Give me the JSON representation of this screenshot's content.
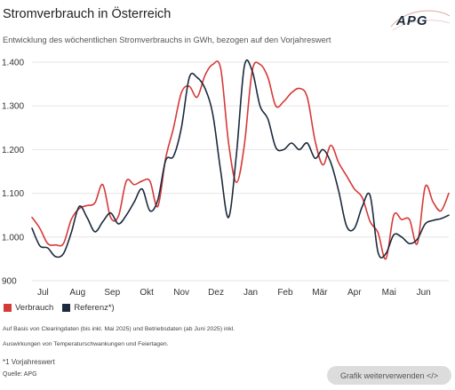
{
  "title": "Stromverbrauch in Österreich",
  "subtitle": "Entwicklung des wöchentlichen Stromverbrauchs in GWh, bezogen auf den Vorjahreswert",
  "logo_text": "APG",
  "legend": {
    "verbrauch": "Verbrauch",
    "referenz": "Referenz*)"
  },
  "notes": {
    "line1": "Auf Basis von Clearingdaten (bis inkl. Mai 2025) und Betriebsdaten (ab Juni 2025) inkl.",
    "line2": "Auswirkungen von Temperaturschwankungen und Feiertagen.",
    "footnote": "*1 Vorjahreswert",
    "source": "Quelle: APG"
  },
  "cta_label": "Grafik weiterverwenden </>",
  "colors": {
    "verbrauch": "#d63a37",
    "referenz": "#1c2a3d"
  },
  "chart_data": {
    "type": "line",
    "title": "",
    "xlabel": "",
    "ylabel": "",
    "ylim": [
      900,
      1400
    ],
    "yticks": [
      {
        "value": 900,
        "label": "900"
      },
      {
        "value": 1000,
        "label": "1.000"
      },
      {
        "value": 1100,
        "label": "1.100"
      },
      {
        "value": 1200,
        "label": "1.200"
      },
      {
        "value": 1300,
        "label": "1.300"
      },
      {
        "value": 1400,
        "label": "1.400"
      }
    ],
    "months": [
      {
        "label": "Jul",
        "week": 1.4
      },
      {
        "label": "Aug",
        "week": 5.8
      },
      {
        "label": "Sep",
        "week": 10.2
      },
      {
        "label": "Okt",
        "week": 14.6
      },
      {
        "label": "Nov",
        "week": 19.0
      },
      {
        "label": "Dez",
        "week": 23.4
      },
      {
        "label": "Jan",
        "week": 27.8
      },
      {
        "label": "Feb",
        "week": 32.2
      },
      {
        "label": "Mär",
        "week": 36.6
      },
      {
        "label": "Apr",
        "week": 41.0
      },
      {
        "label": "Mai",
        "week": 45.4
      },
      {
        "label": "Jun",
        "week": 49.8
      }
    ],
    "grid": true,
    "legend_position": "bottom-left",
    "series": [
      {
        "name": "Verbrauch",
        "values": [
          1045,
          1020,
          985,
          982,
          985,
          1040,
          1065,
          1072,
          1078,
          1120,
          1045,
          1048,
          1128,
          1120,
          1128,
          1128,
          1070,
          1180,
          1250,
          1330,
          1345,
          1320,
          1370,
          1395,
          1385,
          1215,
          1125,
          1210,
          1380,
          1395,
          1365,
          1300,
          1310,
          1330,
          1340,
          1320,
          1220,
          1165,
          1210,
          1170,
          1140,
          1110,
          1090,
          1035,
          1010,
          950,
          1050,
          1040,
          1040,
          985,
          1115,
          1080,
          1060,
          1100
        ]
      },
      {
        "name": "Referenz*)",
        "values": [
          1020,
          980,
          975,
          955,
          962,
          1010,
          1070,
          1045,
          1012,
          1035,
          1055,
          1030,
          1050,
          1080,
          1110,
          1060,
          1085,
          1175,
          1185,
          1250,
          1365,
          1365,
          1340,
          1280,
          1150,
          1045,
          1190,
          1390,
          1380,
          1300,
          1270,
          1205,
          1200,
          1215,
          1200,
          1215,
          1180,
          1200,
          1170,
          1105,
          1025,
          1020,
          1070,
          1095,
          965,
          962,
          1005,
          1000,
          985,
          995,
          1030,
          1038,
          1042,
          1050
        ]
      }
    ]
  }
}
